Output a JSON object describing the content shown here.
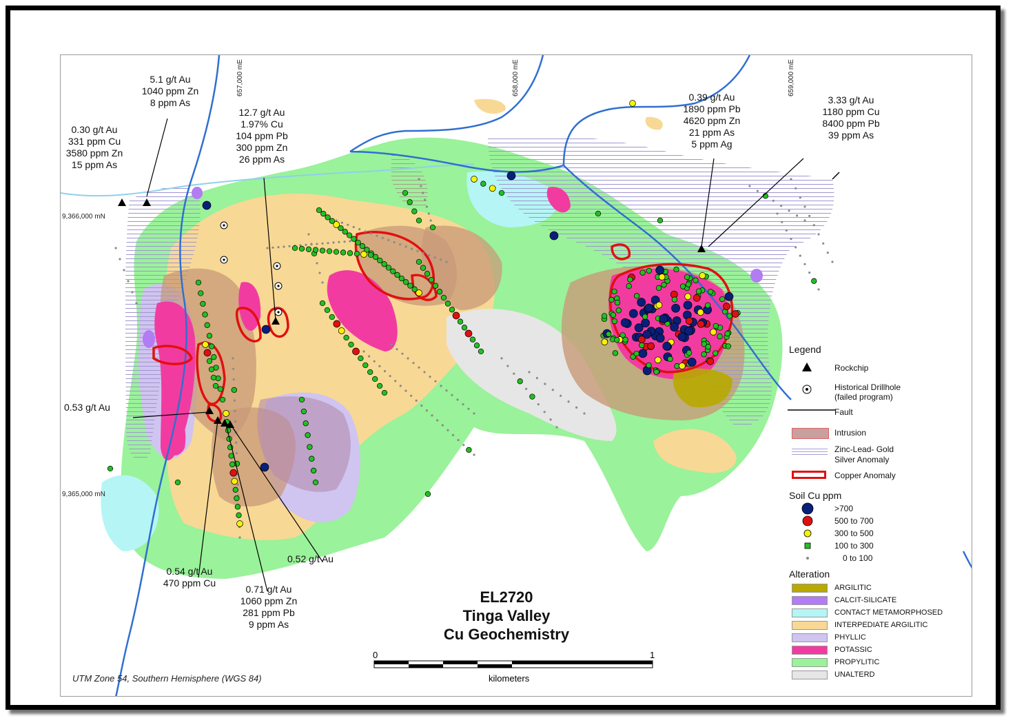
{
  "map": {
    "grid_easting": [
      "657,000 mE",
      "658,000 mE",
      "659,000 mE"
    ],
    "grid_northing": [
      "9,366,000 mN",
      "9,365,000 mN"
    ],
    "title": [
      "EL2720",
      "Tinga Valley",
      "Cu Geochemistry"
    ],
    "projection": "UTM Zone 54, Southern Hemisphere (WGS 84)",
    "scale": {
      "start": "0",
      "end": "1",
      "unit": "kilometers"
    }
  },
  "callouts": [
    {
      "id": "rc-a",
      "lines": [
        "0.30 g/t Au",
        "331 ppm Cu",
        "3580 ppm Zn",
        "15 ppm As"
      ]
    },
    {
      "id": "rc-b",
      "lines": [
        "5.1 g/t Au",
        "1040 ppm Zn",
        "8 ppm As"
      ]
    },
    {
      "id": "rc-c",
      "lines": [
        "12.7 g/t Au",
        "1.97%  Cu",
        "104 ppm Pb",
        "300 ppm Zn",
        "26 ppm As"
      ]
    },
    {
      "id": "rc-d",
      "lines": [
        "0.39 g/t Au",
        "1890 ppm Pb",
        "4620 ppm Zn",
        "21 ppm As",
        "5 ppm Ag"
      ]
    },
    {
      "id": "rc-e",
      "lines": [
        "3.33 g/t  Au",
        "1180 ppm Cu",
        "8400 ppm Pb",
        "39 ppm As"
      ]
    },
    {
      "id": "rc-f",
      "lines": [
        "0.53 g/t Au"
      ]
    },
    {
      "id": "rc-g",
      "lines": [
        "0.54 g/t Au",
        "470 ppm Cu"
      ]
    },
    {
      "id": "rc-h",
      "lines": [
        "0.71 g/t Au",
        "1060 ppm Zn",
        "281 ppm Pb",
        "9 ppm As"
      ]
    },
    {
      "id": "rc-i",
      "lines": [
        "0.52 g/t Au"
      ]
    }
  ],
  "legend": {
    "title": "Legend",
    "symbols": {
      "rockchip": "Rockchip",
      "drillhole": "Historical Drillhole (failed program)",
      "drillhole_l1": "Historical Drillhole",
      "drillhole_l2": "(failed program)",
      "fault": "Fault",
      "intrusion": "Intrusion",
      "znpb_l1": "Zinc-Lead- Gold",
      "znpb_l2": "Silver Anomaly",
      "copper": "Copper Anomaly"
    },
    "soil_title": "Soil Cu ppm",
    "soil_classes": [
      {
        "label": ">700",
        "color": "#0a1f7a"
      },
      {
        "label": "500  to  700",
        "color": "#e01010"
      },
      {
        "label": "300  to  500",
        "color": "#f5f20a"
      },
      {
        "label": "100  to  300",
        "color": "#22c022"
      },
      {
        "label": "0  to  100",
        "color": "#8a8a8a"
      }
    ],
    "alteration_title": "Alteration",
    "alteration": [
      {
        "label": "ARGILITIC",
        "color": "#b8a800"
      },
      {
        "label": "CALCIT-SILICATE",
        "color": "#b27cf2"
      },
      {
        "label": "CONTACT METAMORPHOSED",
        "color": "#b5f5f5"
      },
      {
        "label": "INTERPEDIATE ARGILITIC",
        "color": "#f8d895"
      },
      {
        "label": "PHYLLIC",
        "color": "#d0c4f0"
      },
      {
        "label": "POTASSIC",
        "color": "#f23ba0"
      },
      {
        "label": "PROPYLITIC",
        "color": "#9af29a"
      },
      {
        "label": "UNALTERD",
        "color": "#e6e6e6"
      }
    ]
  }
}
